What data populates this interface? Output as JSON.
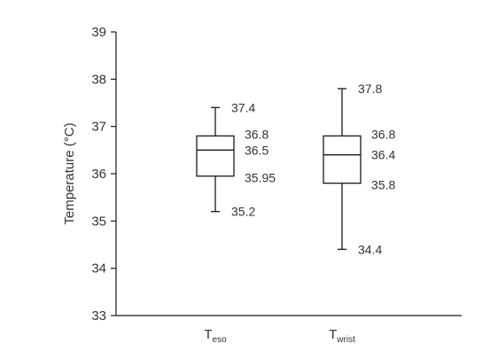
{
  "chart_data": {
    "type": "boxplot",
    "ylabel": "Temperature (°C)",
    "ylim": [
      33,
      39
    ],
    "yticks": [
      33,
      34,
      35,
      36,
      37,
      38,
      39
    ],
    "grid": false,
    "categories": [
      {
        "main": "T",
        "sub": "eso"
      },
      {
        "main": "T",
        "sub": "wrist"
      }
    ],
    "boxes": [
      {
        "min": 35.2,
        "q1": 35.95,
        "median": 36.5,
        "q3": 36.8,
        "max": 37.4,
        "labels": {
          "min": "35.2",
          "q1": "35.95",
          "median": "36.5",
          "q3": "36.8",
          "max": "37.4"
        }
      },
      {
        "min": 34.4,
        "q1": 35.8,
        "median": 36.4,
        "q3": 36.8,
        "max": 37.8,
        "labels": {
          "min": "34.4",
          "q1": "35.8",
          "median": "36.4",
          "q3": "36.8",
          "max": "37.8"
        }
      }
    ]
  }
}
